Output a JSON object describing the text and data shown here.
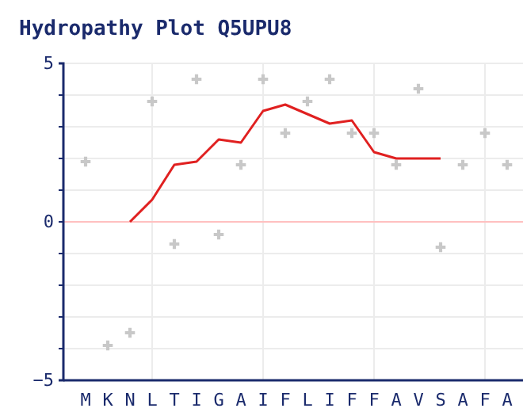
{
  "chart_data": {
    "type": "line",
    "title": "Hydropathy Plot Q5UPU8",
    "categories": [
      "M",
      "K",
      "N",
      "L",
      "T",
      "I",
      "G",
      "A",
      "I",
      "F",
      "L",
      "I",
      "F",
      "F",
      "A",
      "V",
      "S",
      "A",
      "F",
      "A"
    ],
    "series": [
      {
        "type": "scatter",
        "color": "#c8c8c8",
        "marker": "cross",
        "values": [
          1.9,
          -3.9,
          -3.5,
          3.8,
          -0.7,
          4.5,
          -0.4,
          1.8,
          4.5,
          2.8,
          3.8,
          4.5,
          2.8,
          2.8,
          1.8,
          4.2,
          -0.8,
          1.8,
          2.8,
          1.8
        ]
      },
      {
        "color": "#e02020",
        "values": [
          null,
          null,
          0.0,
          0.7,
          1.8,
          1.9,
          2.6,
          2.5,
          3.5,
          3.7,
          3.4,
          3.1,
          3.2,
          2.2,
          2.0,
          2.0,
          2.0,
          null,
          null,
          null
        ]
      }
    ],
    "ylim": [
      -5,
      5
    ],
    "yticks": [
      {
        "value": -5,
        "label": "−5"
      },
      {
        "value": -4,
        "label": null
      },
      {
        "value": -3,
        "label": null
      },
      {
        "value": -2,
        "label": null
      },
      {
        "value": -1,
        "label": null
      },
      0,
      {
        "value": 1,
        "label": null
      },
      {
        "value": 2,
        "label": null
      },
      {
        "value": 3,
        "label": null
      },
      {
        "value": 4,
        "label": null
      },
      5
    ],
    "ref_lines": [
      {
        "axis": "y",
        "value": 0,
        "color": "#ffc0c0"
      }
    ],
    "grid": true
  }
}
